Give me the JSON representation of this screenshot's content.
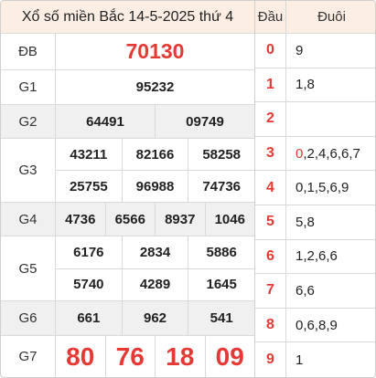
{
  "title": "Xổ số miền Bắc 14-5-2025 thứ 4",
  "prizes": [
    {
      "label": "ĐB",
      "rows": [
        [
          "70130"
        ]
      ]
    },
    {
      "label": "G1",
      "rows": [
        [
          "95232"
        ]
      ]
    },
    {
      "label": "G2",
      "rows": [
        [
          "64491",
          "09749"
        ]
      ]
    },
    {
      "label": "G3",
      "rows": [
        [
          "43211",
          "82166",
          "58258"
        ],
        [
          "25755",
          "96988",
          "74736"
        ]
      ]
    },
    {
      "label": "G4",
      "rows": [
        [
          "4736",
          "6566",
          "8937",
          "1046"
        ]
      ]
    },
    {
      "label": "G5",
      "rows": [
        [
          "6176",
          "2834",
          "5886"
        ],
        [
          "5740",
          "4289",
          "1645"
        ]
      ]
    },
    {
      "label": "G6",
      "rows": [
        [
          "661",
          "962",
          "541"
        ]
      ]
    },
    {
      "label": "G7",
      "rows": [
        [
          "80",
          "76",
          "18",
          "09"
        ]
      ]
    }
  ],
  "dau_duoi": {
    "head_label": "Đầu",
    "tail_label": "Đuôi",
    "rows": [
      {
        "head": "0",
        "tails": "9"
      },
      {
        "head": "1",
        "tails": "1,8"
      },
      {
        "head": "2",
        "tails": ""
      },
      {
        "head": "3",
        "tails_highlight": "0",
        "tails": ",2,4,6,6,7"
      },
      {
        "head": "4",
        "tails": "0,1,5,6,9"
      },
      {
        "head": "5",
        "tails": "5,8"
      },
      {
        "head": "6",
        "tails": "1,2,6,6"
      },
      {
        "head": "7",
        "tails": "6,6"
      },
      {
        "head": "8",
        "tails": "0,6,8,9"
      },
      {
        "head": "9",
        "tails": "1"
      }
    ]
  },
  "colors": {
    "accent": "#e53935",
    "header_bg": "#fdeee3",
    "row_shade": "#f0f0f0"
  }
}
